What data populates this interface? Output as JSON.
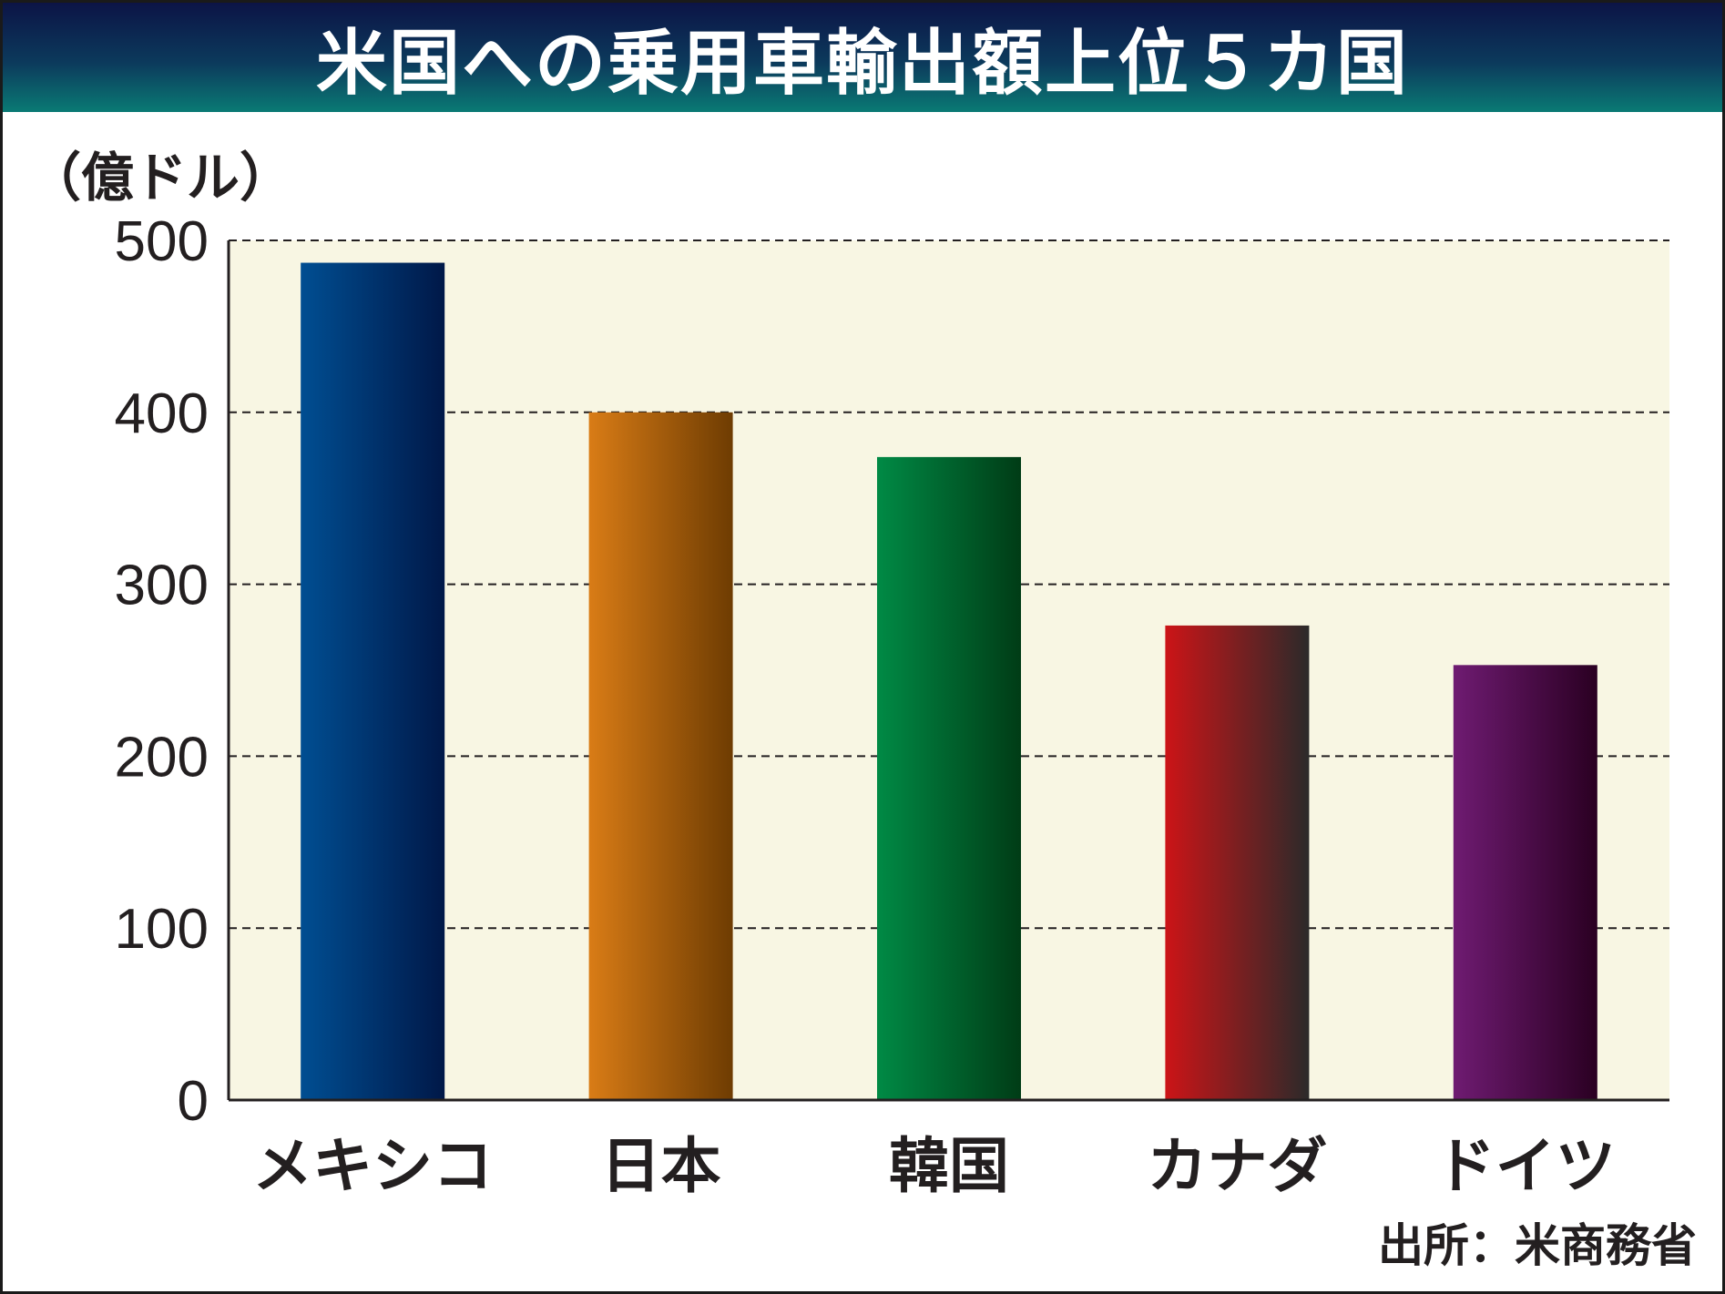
{
  "chart_data": {
    "type": "bar",
    "title": "米国への乗用車輸出額上位５カ国",
    "ylabel": "（億ドル）",
    "source": "出所：米商務省",
    "categories": [
      "メキシコ",
      "日本",
      "韓国",
      "カナダ",
      "ドイツ"
    ],
    "values": [
      487,
      400,
      374,
      276,
      253
    ],
    "ylim": [
      0,
      500
    ],
    "yticks": [
      0,
      100,
      200,
      300,
      400,
      500
    ],
    "grid": true,
    "plot_background": "#f8f6e3",
    "bar_gradients": [
      [
        "#004e92",
        "#001848"
      ],
      [
        "#d97c16",
        "#6e3c02"
      ],
      [
        "#008a45",
        "#003c16"
      ],
      [
        "#cc1417",
        "#2b2a2a"
      ],
      [
        "#6f1b72",
        "#2a0022"
      ]
    ]
  }
}
